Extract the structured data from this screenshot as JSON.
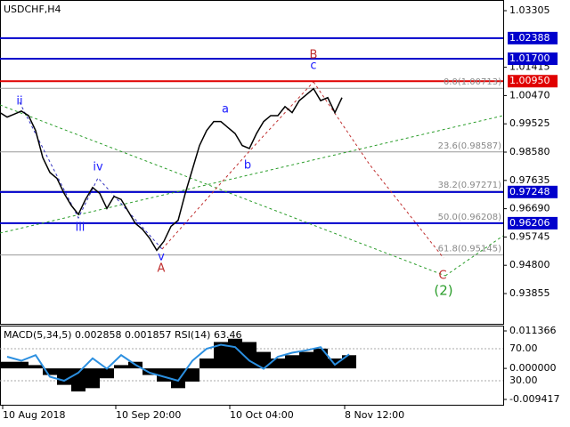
{
  "title": "USDCHF,H4",
  "price_axis": {
    "ylim": [
      0.93855,
      1.03305
    ],
    "ticks": [
      1.03305,
      1.01415,
      {
        "value": 1.0047,
        "label": "1.00470"
      },
      0.99525,
      {
        "value": 0.9858,
        "label": "0.98580"
      },
      0.97635,
      {
        "value": 0.9669,
        "label": "0.96690"
      },
      0.95745,
      {
        "value": 0.948,
        "label": "0.94800"
      },
      0.93855
    ]
  },
  "levels": [
    {
      "value": 1.02388,
      "label": "1.02388",
      "color": "#0000cc"
    },
    {
      "value": 1.017,
      "label": "1.01700",
      "color": "#0000cc"
    },
    {
      "value": 1.0095,
      "label": "1.00950",
      "color": "#e00000"
    },
    {
      "value": 0.97248,
      "label": "0.97248",
      "color": "#0000cc"
    },
    {
      "value": 0.96206,
      "label": "0.96206",
      "color": "#0000cc"
    }
  ],
  "fibonacci": [
    {
      "value": 1.00713,
      "label": "0.0(1.00713)"
    },
    {
      "value": 0.98587,
      "label": "23.6(0.98587)"
    },
    {
      "value": 0.97271,
      "label": "38.2(0.97271)"
    },
    {
      "value": 0.96208,
      "label": "50.0(0.96208)"
    },
    {
      "value": 0.95145,
      "label": "61.8(0.95145)"
    }
  ],
  "waves": [
    "ii",
    "iii",
    "iv",
    "v",
    "a",
    "b",
    "c",
    "A",
    "B",
    "C",
    "(2)"
  ],
  "price": {
    "values": [
      0.999,
      0.9975,
      0.9985,
      0.9995,
      0.998,
      0.993,
      0.984,
      0.979,
      0.977,
      0.972,
      0.968,
      0.965,
      0.97,
      0.974,
      0.972,
      0.967,
      0.971,
      0.97,
      0.966,
      0.962,
      0.96,
      0.957,
      0.953,
      0.956,
      0.961,
      0.963,
      0.972,
      0.98,
      0.988,
      0.993,
      0.996,
      0.996,
      0.994,
      0.992,
      0.988,
      0.987,
      0.992,
      0.996,
      0.998,
      0.998,
      1.001,
      0.999,
      1.003,
      1.005,
      1.007,
      1.003,
      1.004,
      0.999,
      1.004
    ]
  },
  "indicator": {
    "label": "MACD(5,34,5) 0.002858 0.001857 RSI(14) 63.46",
    "macd_lim": [
      -0.009417,
      0.011366
    ],
    "macd_ticks": [
      0.011366,
      {
        "value": 0,
        "label": "0.000000"
      },
      -0.009417
    ],
    "rsi_lim": [
      0,
      100
    ],
    "rsi_ticks": [
      {
        "value": 70,
        "label": "70.00"
      },
      {
        "value": 30,
        "label": "30.00"
      }
    ],
    "histogram": [
      0.002,
      0.002,
      0.001,
      -0.002,
      -0.005,
      -0.007,
      -0.006,
      -0.003,
      0.001,
      0.002,
      -0.002,
      -0.004,
      -0.006,
      -0.004,
      0.003,
      0.008,
      0.009,
      0.008,
      0.005,
      0.003,
      0.004,
      0.005,
      0.006,
      0.003,
      0.004
    ],
    "rsi": [
      60,
      55,
      62,
      35,
      30,
      40,
      58,
      45,
      62,
      50,
      40,
      35,
      30,
      55,
      70,
      75,
      72,
      55,
      45,
      60,
      65,
      68,
      72,
      50,
      63
    ]
  },
  "dates": [
    "10 Aug 2018",
    "10 Sep 20:00",
    "10 Oct 04:00",
    "8 Nov 12:00"
  ]
}
